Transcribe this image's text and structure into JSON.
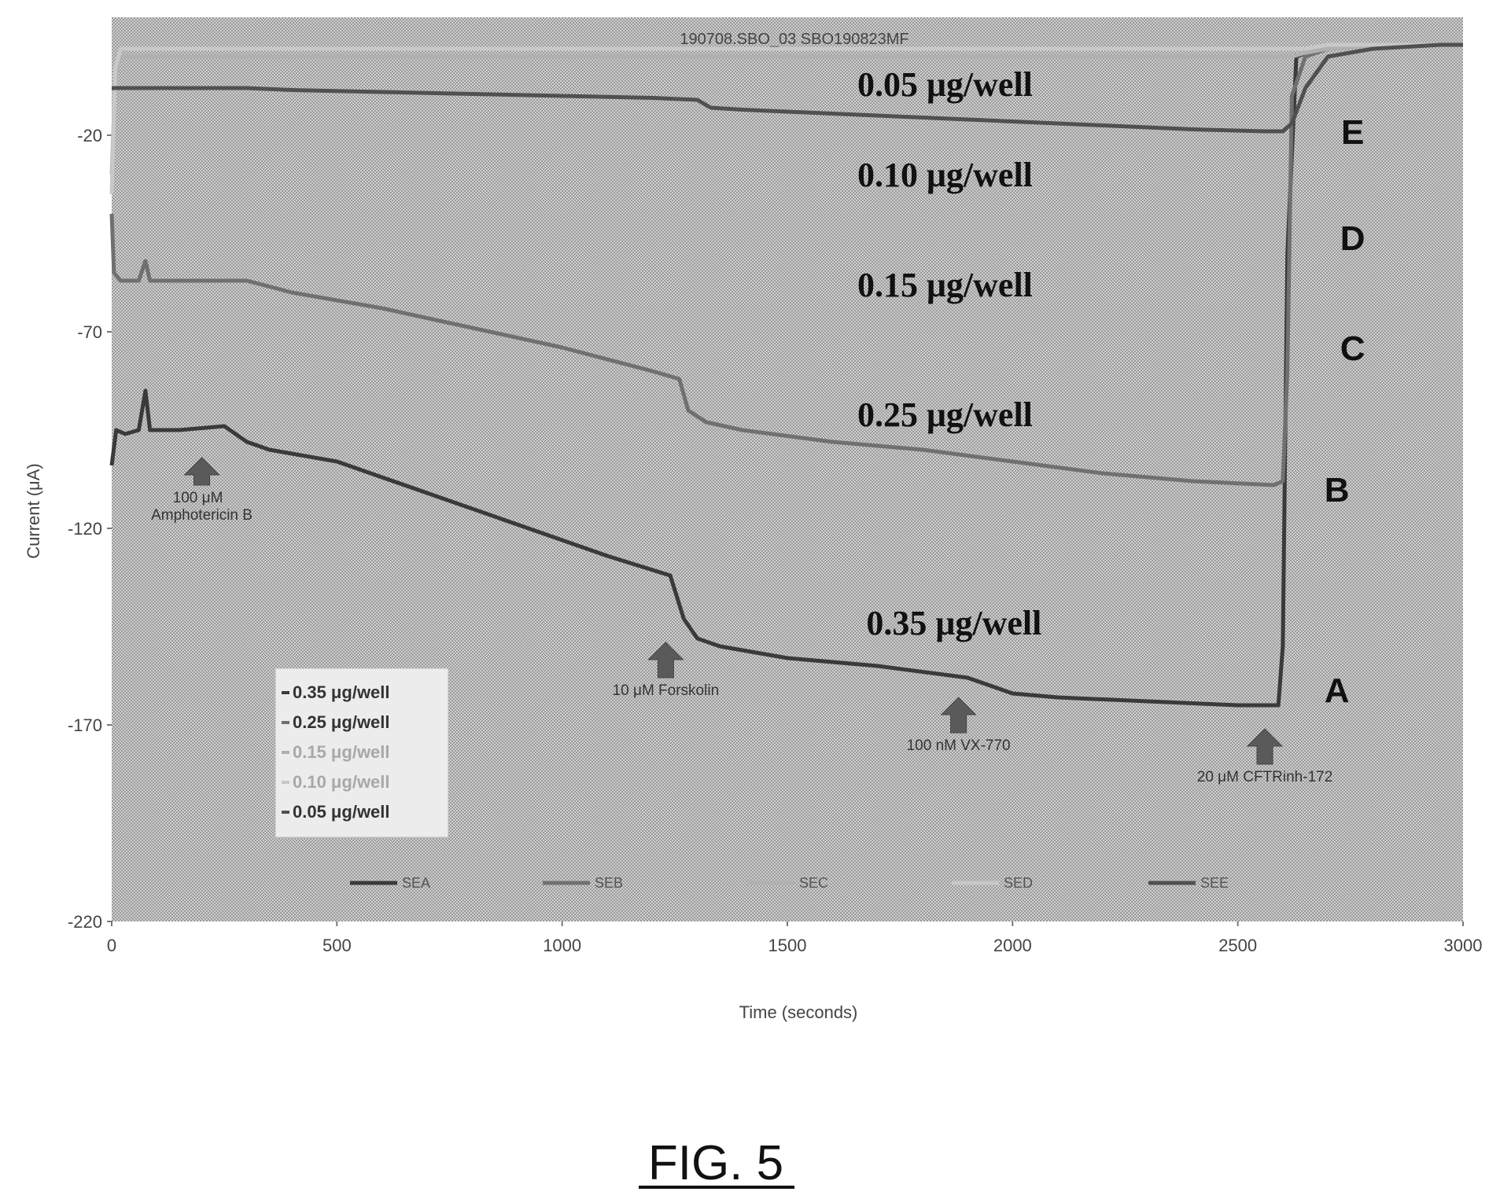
{
  "figure_label": "FIG. 5",
  "chart_data": {
    "type": "line",
    "title": "190708.SBO_03    SBO190823MF",
    "xlabel": "Time (seconds)",
    "ylabel": "Current (μA)",
    "xlim": [
      0,
      3000
    ],
    "ylim": [
      -220,
      10
    ],
    "xticks": [
      0,
      500,
      1000,
      1500,
      2000,
      2500,
      3000
    ],
    "yticks": [
      -20,
      -70,
      -120,
      -170,
      -220
    ],
    "grid": false,
    "legend_position": "bottom-left",
    "series": [
      {
        "name": "0.35 μg/well",
        "letter": "A",
        "color": "#3a3a3a",
        "x": [
          0,
          10,
          30,
          60,
          75,
          85,
          100,
          150,
          250,
          300,
          350,
          400,
          500,
          700,
          900,
          1100,
          1240,
          1270,
          1300,
          1350,
          1400,
          1500,
          1700,
          1900,
          1950,
          2000,
          2100,
          2300,
          2500,
          2590,
          2600,
          2610,
          2630,
          2680,
          2750,
          2850,
          2950,
          3000
        ],
        "y": [
          -104,
          -95,
          -96,
          -95,
          -85,
          -95,
          -95,
          -95,
          -94,
          -98,
          -100,
          -101,
          -103,
          -111,
          -119,
          -127,
          -132,
          -143,
          -148,
          -150,
          -151,
          -153,
          -155,
          -158,
          -160,
          -162,
          -163,
          -164,
          -165,
          -165,
          -150,
          -50,
          0,
          2,
          3,
          3,
          3,
          3
        ]
      },
      {
        "name": "0.25 μg/well",
        "letter": "B",
        "color": "#707070",
        "x": [
          0,
          5,
          20,
          60,
          75,
          85,
          100,
          200,
          300,
          400,
          600,
          800,
          1000,
          1200,
          1260,
          1280,
          1320,
          1400,
          1600,
          1800,
          2000,
          2200,
          2400,
          2580,
          2600,
          2610,
          2620,
          2650,
          2700,
          2800,
          2950,
          3000
        ],
        "y": [
          -40,
          -55,
          -57,
          -57,
          -52,
          -57,
          -57,
          -57,
          -57,
          -60,
          -64,
          -69,
          -74,
          -80,
          -82,
          -90,
          -93,
          -95,
          -98,
          -100,
          -103,
          -106,
          -108,
          -109,
          -108,
          -80,
          -10,
          0,
          2,
          3,
          3,
          3
        ]
      },
      {
        "name": "0.15 μg/well",
        "letter": "C",
        "color": "#b0b0b0",
        "x": [
          0,
          8,
          20,
          200,
          400,
          600,
          800,
          1000,
          1200,
          1400,
          1600,
          1800,
          2000,
          2200,
          2400,
          2600,
          2620,
          2650,
          2700,
          2800,
          3000
        ],
        "y": [
          -30,
          -5,
          0,
          0,
          0,
          0,
          0,
          0,
          0,
          0,
          0,
          0,
          0,
          0,
          0,
          0,
          0,
          1,
          2,
          3,
          3
        ]
      },
      {
        "name": "0.10 μg/well",
        "letter": "D",
        "color": "#c8c8c8",
        "x": [
          0,
          8,
          20,
          200,
          400,
          600,
          800,
          1000,
          1200,
          1400,
          1600,
          1800,
          2000,
          2200,
          2400,
          2600,
          2620,
          2650,
          2700,
          2800,
          3000
        ],
        "y": [
          -35,
          -3,
          2,
          2,
          2,
          2,
          2,
          2,
          2,
          2,
          2,
          2,
          2,
          2,
          2,
          2,
          2,
          2,
          3,
          3,
          3
        ]
      },
      {
        "name": "0.05 μg/well",
        "letter": "E",
        "color": "#505050",
        "x": [
          0,
          10,
          30,
          300,
          400,
          600,
          800,
          1000,
          1200,
          1300,
          1330,
          1400,
          1600,
          1800,
          2000,
          2200,
          2400,
          2560,
          2600,
          2620,
          2650,
          2700,
          2800,
          2950,
          3000
        ],
        "y": [
          -8,
          -8,
          -8,
          -8,
          -8.5,
          -9,
          -9.5,
          -10,
          -10.5,
          -11,
          -13,
          -13.5,
          -14.5,
          -15.5,
          -16.5,
          -17.5,
          -18.5,
          -19,
          -19,
          -17,
          -8,
          0,
          2,
          3,
          3
        ]
      }
    ],
    "dose_labels": [
      {
        "text": "0.05 μg/well",
        "x": 1850,
        "y": -10
      },
      {
        "text": "0.10 μg/well",
        "x": 1850,
        "y": -33
      },
      {
        "text": "0.15 μg/well",
        "x": 1850,
        "y": -61
      },
      {
        "text": "0.25 μg/well",
        "x": 1850,
        "y": -94
      },
      {
        "text": "0.35 μg/well",
        "x": 1870,
        "y": -147
      }
    ],
    "letter_labels": [
      {
        "text": "E",
        "x": 2755,
        "y": -19
      },
      {
        "text": "D",
        "x": 2755,
        "y": -46
      },
      {
        "text": "C",
        "x": 2755,
        "y": -74
      },
      {
        "text": "B",
        "x": 2720,
        "y": -110
      },
      {
        "text": "A",
        "x": 2720,
        "y": -161
      }
    ],
    "annotations": [
      {
        "lines": [
          "100 μM",
          "Amphotericin B"
        ],
        "x": 200,
        "y": -115,
        "tip_y": -102
      },
      {
        "lines": [
          "10 μM Forskolin"
        ],
        "x": 1230,
        "y": -164,
        "tip_y": -149
      },
      {
        "lines": [
          "100 nM VX-770"
        ],
        "x": 1880,
        "y": -178,
        "tip_y": -163
      },
      {
        "lines": [
          "20 μM CFTRinh-172"
        ],
        "x": 2560,
        "y": -186,
        "tip_y": -171
      }
    ],
    "legend_entries": [
      "0.35 μg/well",
      "0.25 μg/well",
      "0.15 μg/well",
      "0.10 μg/well",
      "0.05 μg/well"
    ],
    "bottom_legend": [
      "SEA",
      "SEB",
      "SEC",
      "SED",
      "SEE"
    ]
  }
}
